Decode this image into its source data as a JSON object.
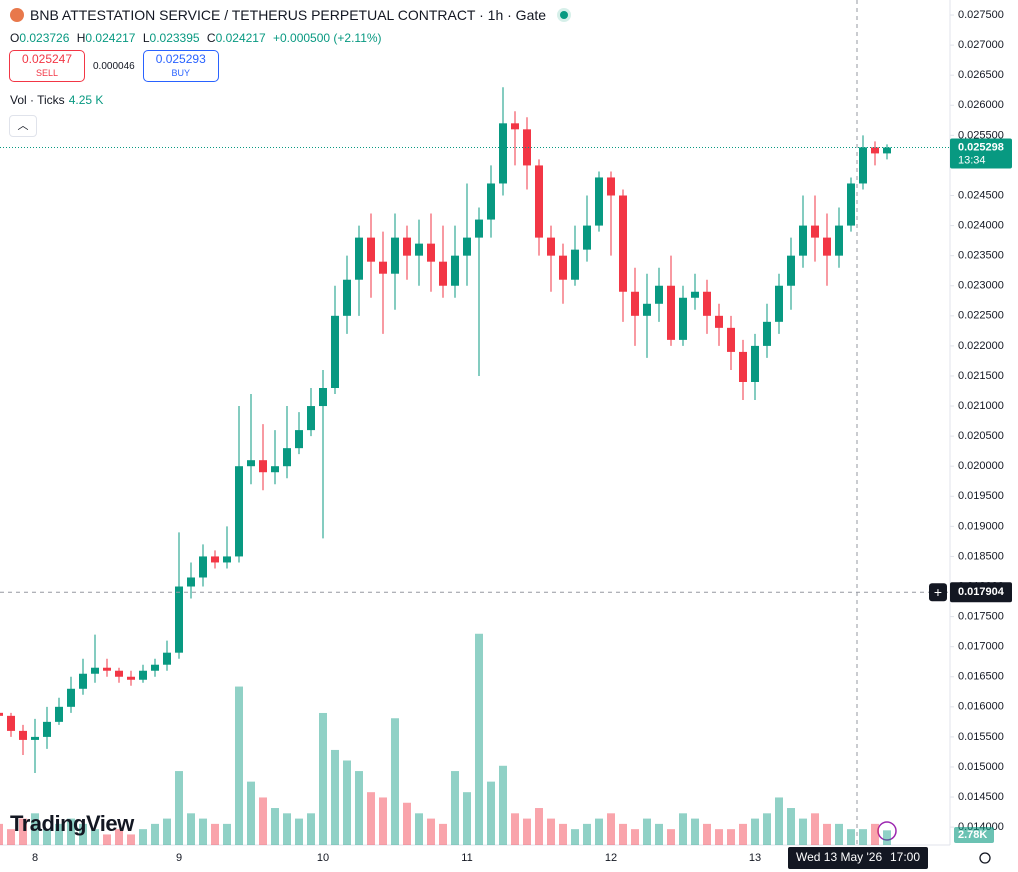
{
  "header": {
    "title": "BNB ATTESTATION SERVICE / TETHERUS PERPETUAL CONTRACT · 1h · Gate",
    "ohlc": [
      {
        "label": "O",
        "value": "0.023726"
      },
      {
        "label": "H",
        "value": "0.024217"
      },
      {
        "label": "L",
        "value": "0.023395"
      },
      {
        "label": "C",
        "value": "0.024217"
      }
    ],
    "change": "+0.000500 (+2.11%)"
  },
  "trade": {
    "sell_price": "0.025247",
    "sell": "SELL",
    "spread": "0.000046",
    "buy_price": "0.025293",
    "buy": "BUY"
  },
  "volume_legend": {
    "label": "Vol · Ticks",
    "value": "4.25 K"
  },
  "watermark": "TradingView",
  "chart_data": {
    "type": "candlestick",
    "up_color": "#089981",
    "down_color": "#f23645",
    "categories": [
      null,
      null,
      null,
      "8",
      null,
      null,
      null,
      null,
      null,
      null,
      null,
      null,
      null,
      null,
      null,
      "9",
      null,
      null,
      null,
      null,
      null,
      null,
      null,
      null,
      null,
      null,
      null,
      "10",
      null,
      null,
      null,
      null,
      null,
      null,
      null,
      null,
      null,
      null,
      null,
      "11",
      null,
      null,
      null,
      null,
      null,
      null,
      null,
      null,
      null,
      null,
      null,
      "12",
      null,
      null,
      null,
      null,
      null,
      null,
      null,
      null,
      null,
      null,
      null,
      "13",
      null,
      null,
      null,
      null,
      null,
      null,
      null,
      null,
      null,
      null,
      null
    ],
    "open": [
      0.0159,
      0.01585,
      0.0156,
      0.01545,
      0.0155,
      0.01575,
      0.016,
      0.0163,
      0.01655,
      0.01665,
      0.0166,
      0.0165,
      0.01645,
      0.0166,
      0.0167,
      0.0169,
      0.018,
      0.01815,
      0.0185,
      0.0184,
      0.0185,
      0.02,
      0.0201,
      0.0199,
      0.02,
      0.0203,
      0.0206,
      0.021,
      0.0213,
      0.0225,
      0.0231,
      0.0238,
      0.0234,
      0.0232,
      0.0238,
      0.0235,
      0.0237,
      0.0234,
      0.023,
      0.0235,
      0.0238,
      0.0241,
      0.0247,
      0.0257,
      0.0256,
      0.025,
      0.0238,
      0.0235,
      0.0231,
      0.0236,
      0.024,
      0.0248,
      0.0245,
      0.0229,
      0.0225,
      0.0227,
      0.023,
      0.0221,
      0.0228,
      0.0229,
      0.0225,
      0.0223,
      0.0219,
      0.0214,
      0.022,
      0.0224,
      0.023,
      0.0235,
      0.024,
      0.0238,
      0.0235,
      0.024,
      0.0247,
      0.0253,
      0.0252
    ],
    "high": [
      0.01595,
      0.0159,
      0.0157,
      0.0158,
      0.016,
      0.01615,
      0.0165,
      0.0168,
      0.0172,
      0.0168,
      0.01665,
      0.0166,
      0.0167,
      0.0168,
      0.0171,
      0.0189,
      0.0184,
      0.0187,
      0.0186,
      0.019,
      0.021,
      0.0212,
      0.0207,
      0.0206,
      0.021,
      0.0209,
      0.0213,
      0.0216,
      0.023,
      0.0235,
      0.024,
      0.0242,
      0.0239,
      0.0242,
      0.024,
      0.0241,
      0.0242,
      0.024,
      0.024,
      0.0247,
      0.0243,
      0.025,
      0.0263,
      0.0259,
      0.0258,
      0.0251,
      0.024,
      0.0237,
      0.024,
      0.0245,
      0.0249,
      0.0249,
      0.0246,
      0.0233,
      0.0232,
      0.0233,
      0.0235,
      0.023,
      0.0232,
      0.0231,
      0.0227,
      0.0225,
      0.0221,
      0.0222,
      0.0227,
      0.0232,
      0.0238,
      0.0245,
      0.0245,
      0.0242,
      0.0243,
      0.0248,
      0.0255,
      0.0254,
      0.02535
    ],
    "low": [
      0.0158,
      0.0155,
      0.0152,
      0.0149,
      0.0153,
      0.0157,
      0.0159,
      0.0162,
      0.0164,
      0.0165,
      0.0164,
      0.01635,
      0.0164,
      0.0165,
      0.0166,
      0.0168,
      0.0178,
      0.018,
      0.0183,
      0.0183,
      0.0184,
      0.0197,
      0.0196,
      0.0197,
      0.0198,
      0.0202,
      0.0205,
      0.0188,
      0.0212,
      0.0222,
      0.0225,
      0.0228,
      0.0222,
      0.0226,
      0.0231,
      0.023,
      0.0229,
      0.0228,
      0.0228,
      0.023,
      0.0215,
      0.0238,
      0.0245,
      0.025,
      0.0246,
      0.0235,
      0.0229,
      0.0227,
      0.023,
      0.0234,
      0.0239,
      0.0235,
      0.0224,
      0.022,
      0.0218,
      0.0224,
      0.022,
      0.022,
      0.0226,
      0.0222,
      0.022,
      0.0216,
      0.0211,
      0.0211,
      0.0218,
      0.0222,
      0.0226,
      0.0233,
      0.0234,
      0.023,
      0.0233,
      0.0239,
      0.0246,
      0.025,
      0.0251
    ],
    "close": [
      0.01585,
      0.0156,
      0.01545,
      0.0155,
      0.01575,
      0.016,
      0.0163,
      0.01655,
      0.01665,
      0.0166,
      0.0165,
      0.01645,
      0.0166,
      0.0167,
      0.0169,
      0.018,
      0.01815,
      0.0185,
      0.0184,
      0.0185,
      0.02,
      0.0201,
      0.0199,
      0.02,
      0.0203,
      0.0206,
      0.021,
      0.0213,
      0.0225,
      0.0231,
      0.0238,
      0.0234,
      0.0232,
      0.0238,
      0.0235,
      0.0237,
      0.0234,
      0.023,
      0.0235,
      0.0238,
      0.0241,
      0.0247,
      0.0257,
      0.0256,
      0.025,
      0.0238,
      0.0235,
      0.0231,
      0.0236,
      0.024,
      0.0248,
      0.0245,
      0.0229,
      0.0225,
      0.0227,
      0.023,
      0.0221,
      0.0228,
      0.0229,
      0.0225,
      0.0223,
      0.0219,
      0.0214,
      0.022,
      0.0224,
      0.023,
      0.0235,
      0.024,
      0.0238,
      0.0235,
      0.024,
      0.0247,
      0.0253,
      0.0252,
      0.025298
    ],
    "volume": [
      4,
      3,
      5,
      6,
      3,
      4,
      5,
      4,
      3,
      2,
      3,
      2,
      3,
      4,
      5,
      14,
      6,
      5,
      4,
      4,
      30,
      12,
      9,
      7,
      6,
      5,
      6,
      25,
      18,
      16,
      14,
      10,
      9,
      24,
      8,
      6,
      5,
      4,
      14,
      10,
      40,
      12,
      15,
      6,
      5,
      7,
      5,
      4,
      3,
      4,
      5,
      6,
      4,
      3,
      5,
      4,
      3,
      6,
      5,
      4,
      3,
      3,
      4,
      5,
      6,
      9,
      7,
      5,
      6,
      4,
      4,
      3,
      3,
      4,
      2.78
    ],
    "volume_ylim": [
      0,
      160
    ],
    "last_volume_label": "2.78K",
    "ylim": [
      0.013703,
      0.02775
    ],
    "yticks": [
      {
        "value": 0.014,
        "label": "0.014000"
      },
      {
        "value": 0.0145,
        "label": "0.014500"
      },
      {
        "value": 0.015,
        "label": "0.015000"
      },
      {
        "value": 0.0155,
        "label": "0.015500"
      },
      {
        "value": 0.016,
        "label": "0.016000"
      },
      {
        "value": 0.0165,
        "label": "0.016500"
      },
      {
        "value": 0.017,
        "label": "0.017000"
      },
      {
        "value": 0.0175,
        "label": "0.017500"
      },
      {
        "value": 0.018,
        "label": "0.018000"
      },
      {
        "value": 0.0185,
        "label": "0.018500"
      },
      {
        "value": 0.019,
        "label": "0.019000"
      },
      {
        "value": 0.0195,
        "label": "0.019500"
      },
      {
        "value": 0.02,
        "label": "0.020000"
      },
      {
        "value": 0.0205,
        "label": "0.020500"
      },
      {
        "value": 0.021,
        "label": "0.021000"
      },
      {
        "value": 0.0215,
        "label": "0.021500"
      },
      {
        "value": 0.022,
        "label": "0.022000"
      },
      {
        "value": 0.0225,
        "label": "0.022500"
      },
      {
        "value": 0.023,
        "label": "0.023000"
      },
      {
        "value": 0.0235,
        "label": "0.023500"
      },
      {
        "value": 0.024,
        "label": "0.024000"
      },
      {
        "value": 0.0245,
        "label": "0.024500"
      },
      {
        "value": 0.025,
        "label": "0.025000"
      },
      {
        "value": 0.0255,
        "label": "0.025500"
      },
      {
        "value": 0.026,
        "label": "0.026000"
      },
      {
        "value": 0.0265,
        "label": "0.026500"
      },
      {
        "value": 0.027,
        "label": "0.027000"
      },
      {
        "value": 0.0275,
        "label": "0.027500"
      }
    ],
    "grid": false,
    "last_price": 0.025298,
    "countdown": "13:34",
    "crosshair": {
      "price": 0.017904,
      "date": "Wed 13 May '26",
      "time": "17:00"
    }
  }
}
